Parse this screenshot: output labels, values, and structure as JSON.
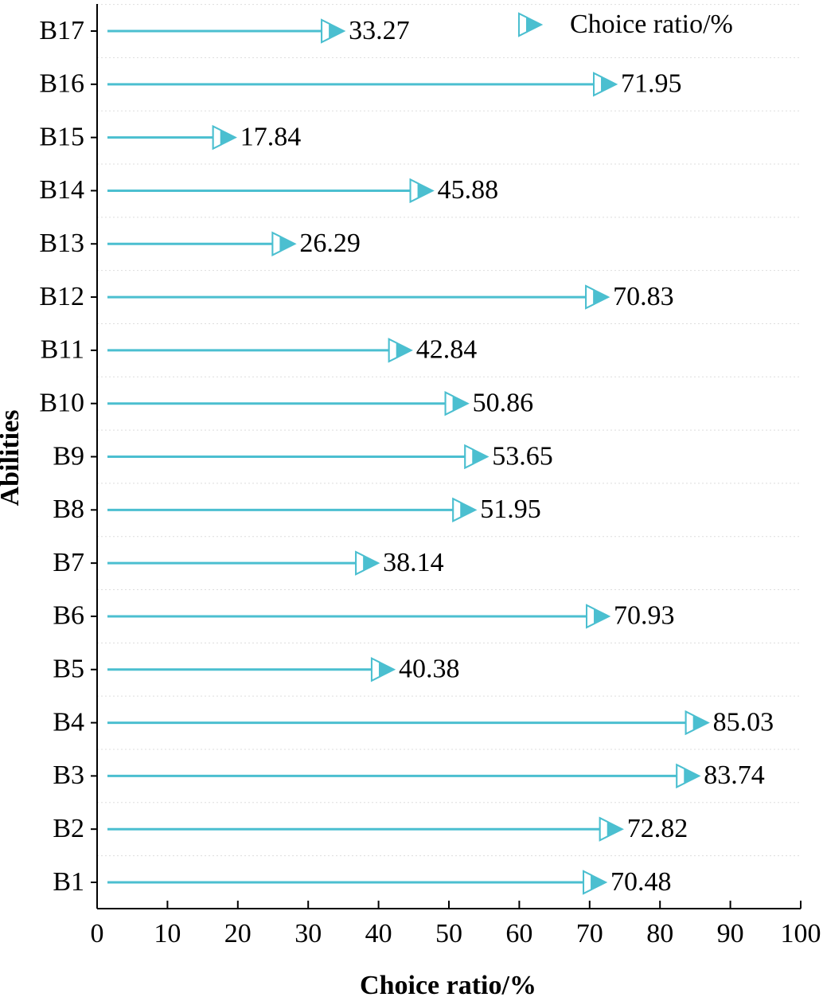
{
  "chart_data": {
    "type": "lollipop",
    "xlabel": "Choice ratio/%",
    "ylabel": "Abilities",
    "categories": [
      "B1",
      "B2",
      "B3",
      "B4",
      "B5",
      "B6",
      "B7",
      "B8",
      "B9",
      "B10",
      "B11",
      "B12",
      "B13",
      "B14",
      "B15",
      "B16",
      "B17"
    ],
    "series": [
      {
        "name": "Choice ratio/%",
        "color": "#4bbfd0",
        "values": [
          70.48,
          72.82,
          83.74,
          85.03,
          40.38,
          70.93,
          38.14,
          51.95,
          53.65,
          50.86,
          42.84,
          70.83,
          26.29,
          45.88,
          17.84,
          71.95,
          33.27
        ]
      }
    ],
    "xlim": [
      0,
      100
    ],
    "xticks": [
      0,
      10,
      20,
      30,
      40,
      50,
      60,
      70,
      80,
      90,
      100
    ],
    "legend": "upper right"
  }
}
